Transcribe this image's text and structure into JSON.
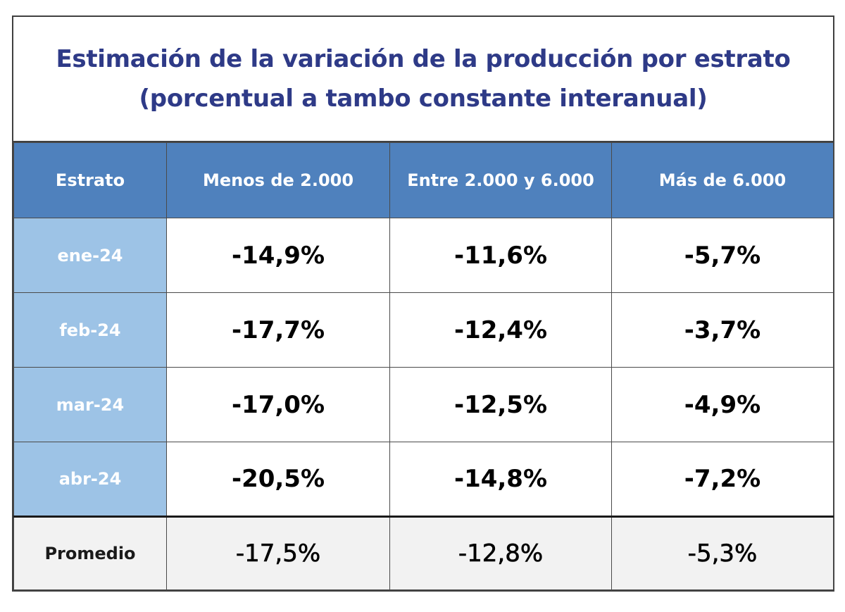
{
  "chart_data": {
    "type": "table",
    "title_lines": [
      "Estimación de la variación de la producción por estrato",
      "(porcentual a tambo constante interanual)"
    ],
    "columns": [
      "Estrato",
      "Menos de 2.000",
      "Entre 2.000 y 6.000",
      "Más de 6.000"
    ],
    "rows": [
      {
        "label": "ene-24",
        "values": [
          "-14,9%",
          "-11,6%",
          "-5,7%"
        ]
      },
      {
        "label": "feb-24",
        "values": [
          "-17,7%",
          "-12,4%",
          "-3,7%"
        ]
      },
      {
        "label": "mar-24",
        "values": [
          "-17,0%",
          "-12,5%",
          "-4,9%"
        ]
      },
      {
        "label": "abr-24",
        "values": [
          "-20,5%",
          "-14,8%",
          "-7,2%"
        ]
      }
    ],
    "summary_row": {
      "label": "Promedio",
      "values": [
        "-17,5%",
        "-12,8%",
        "-5,3%"
      ]
    },
    "colors": {
      "title": "#2e3a87",
      "header_bg": "#4f81bd",
      "row_label_bg": "#9dc3e6",
      "summary_bg": "#f2f2f2"
    }
  }
}
